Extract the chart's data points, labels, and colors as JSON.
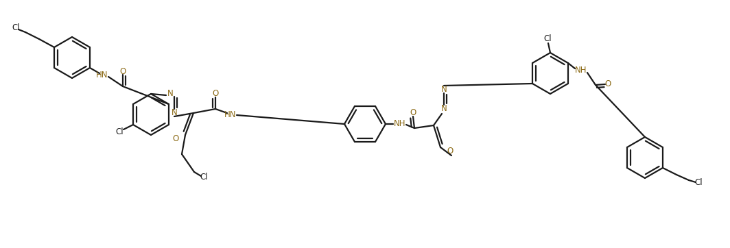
{
  "bg_color": "#ffffff",
  "line_color": "#1a1a1a",
  "heteroatom_color": "#8B6914",
  "bond_lw": 1.6,
  "font_size": 8.5,
  "figsize": [
    10.64,
    3.62
  ],
  "dpi": 100,
  "xlim": [
    0,
    10.64
  ],
  "ylim": [
    0,
    3.62
  ]
}
